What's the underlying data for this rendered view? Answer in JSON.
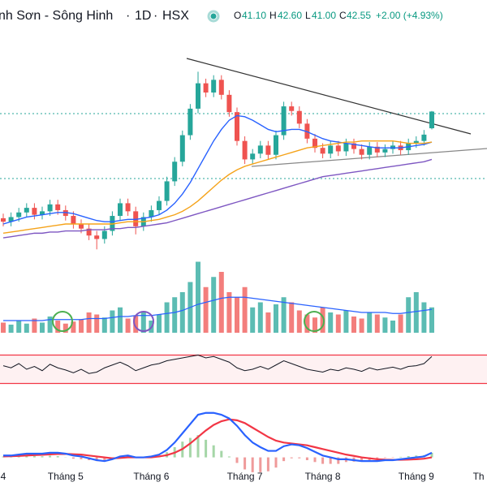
{
  "header": {
    "symbol": "nh Sơn - Sông Hinh",
    "interval": "1D",
    "exchange": "HSX",
    "ohlc": [
      {
        "label": "O",
        "value": "41.10"
      },
      {
        "label": "H",
        "value": "42.60"
      },
      {
        "label": "L",
        "value": "41.00"
      },
      {
        "label": "C",
        "value": "42.55"
      }
    ],
    "change": "+2.00 (+4.93%)"
  },
  "chart_data": {
    "type": "candlestick",
    "categories": [
      "4",
      null,
      null,
      null,
      null,
      null,
      null,
      null,
      "Tháng 5",
      null,
      null,
      null,
      null,
      null,
      null,
      null,
      null,
      null,
      null,
      "Tháng 6",
      null,
      null,
      null,
      null,
      null,
      null,
      null,
      null,
      null,
      null,
      null,
      "Tháng 7",
      null,
      null,
      null,
      null,
      null,
      null,
      null,
      null,
      null,
      "Tháng 8",
      null,
      null,
      null,
      null,
      null,
      null,
      null,
      null,
      null,
      null,
      null,
      "Tháng 9",
      null,
      null,
      null,
      null,
      null,
      null,
      null,
      "Th"
    ],
    "up_color": "#26a69a",
    "down_color": "#ef5350",
    "ylim": [
      29,
      48
    ],
    "open": [
      33.3,
      33.0,
      33.4,
      33.8,
      34.2,
      33.6,
      33.9,
      34.5,
      34.0,
      33.5,
      32.8,
      32.4,
      31.8,
      31.5,
      32.2,
      33.5,
      34.6,
      33.9,
      32.6,
      33.4,
      34.0,
      34.8,
      36.5,
      38.2,
      40.5,
      42.8,
      45.0,
      44.2,
      45.3,
      44.0,
      42.5,
      40.0,
      38.4,
      38.9,
      39.6,
      38.8,
      40.5,
      43.0,
      42.6,
      41.5,
      40.2,
      39.4,
      38.9,
      39.6,
      39.1,
      39.8,
      39.3,
      38.8,
      39.5,
      39.0,
      39.3,
      39.6,
      39.2,
      39.8,
      40.0,
      41.1,
      null,
      null,
      null,
      null,
      null,
      null
    ],
    "high": [
      33.7,
      33.8,
      34.2,
      34.6,
      34.6,
      34.3,
      34.9,
      34.9,
      34.4,
      33.9,
      33.2,
      32.8,
      32.2,
      32.6,
      33.9,
      35.0,
      35.0,
      34.3,
      33.8,
      34.4,
      35.2,
      36.9,
      38.6,
      40.9,
      43.2,
      46.0,
      45.4,
      45.7,
      45.7,
      44.4,
      42.9,
      40.4,
      39.3,
      40.0,
      40.0,
      40.9,
      43.4,
      43.4,
      43.0,
      41.9,
      40.6,
      39.8,
      40.0,
      40.0,
      40.2,
      40.2,
      39.7,
      39.9,
      39.9,
      39.7,
      40.0,
      40.0,
      40.2,
      40.4,
      40.95,
      42.6,
      null,
      null,
      null,
      null,
      null,
      null
    ],
    "low": [
      32.6,
      32.6,
      33.0,
      33.4,
      33.2,
      33.2,
      33.5,
      33.6,
      33.1,
      32.4,
      32.0,
      31.4,
      30.6,
      31.1,
      31.8,
      33.1,
      33.5,
      31.9,
      32.2,
      33.0,
      33.6,
      34.4,
      36.1,
      37.8,
      40.1,
      42.4,
      43.8,
      43.8,
      43.6,
      42.1,
      39.6,
      38.0,
      38.0,
      38.5,
      38.4,
      38.4,
      40.1,
      42.2,
      41.1,
      39.8,
      39.0,
      38.5,
      38.5,
      38.7,
      38.7,
      38.9,
      38.4,
      38.4,
      38.6,
      38.6,
      38.9,
      38.8,
      38.8,
      39.4,
      39.6,
      41.0,
      null,
      null,
      null,
      null,
      null,
      null
    ],
    "close": [
      33.0,
      33.4,
      33.8,
      34.2,
      33.6,
      33.9,
      34.5,
      34.0,
      33.5,
      32.8,
      32.4,
      31.8,
      31.5,
      32.2,
      33.5,
      34.6,
      33.9,
      32.6,
      33.4,
      34.0,
      34.8,
      36.5,
      38.2,
      40.5,
      42.8,
      45.0,
      44.2,
      45.3,
      44.0,
      42.5,
      40.0,
      38.4,
      38.9,
      39.6,
      38.8,
      40.5,
      43.0,
      42.6,
      41.5,
      40.2,
      39.4,
      38.9,
      39.6,
      39.1,
      39.8,
      39.3,
      38.8,
      39.5,
      39.0,
      39.3,
      39.6,
      39.2,
      39.8,
      40.0,
      40.55,
      42.55,
      null,
      null,
      null,
      null,
      null,
      null
    ],
    "moving_averages": [
      {
        "color": "#2962ff",
        "values": [
          32.8,
          33.0,
          33.2,
          33.4,
          33.5,
          33.6,
          33.7,
          33.8,
          33.8,
          33.7,
          33.5,
          33.3,
          33.1,
          33.0,
          33.0,
          33.1,
          33.2,
          33.2,
          33.3,
          33.4,
          33.6,
          34.0,
          34.6,
          35.4,
          36.4,
          37.6,
          38.8,
          40.0,
          41.0,
          41.8,
          42.2,
          42.1,
          41.8,
          41.4,
          41.0,
          40.8,
          40.9,
          41.0,
          41.0,
          40.8,
          40.5,
          40.2,
          40.0,
          39.9,
          39.8,
          39.7,
          39.6,
          39.5,
          39.4,
          39.4,
          39.4,
          39.4,
          39.5,
          39.6,
          39.7,
          39.9,
          null,
          null,
          null,
          null,
          null,
          null
        ]
      },
      {
        "color": "#f5a31a",
        "values": [
          32.0,
          32.1,
          32.2,
          32.3,
          32.4,
          32.5,
          32.6,
          32.7,
          32.8,
          32.8,
          32.8,
          32.8,
          32.8,
          32.8,
          32.8,
          32.9,
          33.0,
          33.0,
          33.0,
          33.1,
          33.2,
          33.4,
          33.6,
          33.9,
          34.3,
          34.8,
          35.4,
          36.0,
          36.6,
          37.1,
          37.5,
          37.8,
          38.0,
          38.2,
          38.4,
          38.6,
          38.8,
          39.0,
          39.2,
          39.4,
          39.5,
          39.6,
          39.7,
          39.8,
          39.9,
          39.9,
          40.0,
          40.0,
          40.0,
          40.0,
          40.0,
          39.9,
          39.8,
          39.8,
          39.8,
          39.9,
          null,
          null,
          null,
          null,
          null,
          null
        ]
      },
      {
        "color": "#7e57c2",
        "values": [
          31.6,
          31.7,
          31.8,
          31.9,
          32.0,
          32.0,
          32.1,
          32.1,
          32.2,
          32.2,
          32.2,
          32.3,
          32.3,
          32.3,
          32.4,
          32.4,
          32.5,
          32.5,
          32.6,
          32.7,
          32.8,
          32.9,
          33.1,
          33.3,
          33.5,
          33.7,
          33.9,
          34.1,
          34.3,
          34.5,
          34.7,
          34.9,
          35.1,
          35.3,
          35.5,
          35.7,
          35.9,
          36.1,
          36.3,
          36.5,
          36.7,
          36.9,
          37.0,
          37.1,
          37.2,
          37.3,
          37.4,
          37.5,
          37.6,
          37.7,
          37.8,
          37.9,
          38.0,
          38.1,
          38.2,
          38.4,
          null,
          null,
          null,
          null,
          null,
          null
        ]
      }
    ],
    "volume": [
      10,
      8,
      12,
      9,
      14,
      10,
      16,
      12,
      9,
      11,
      13,
      20,
      18,
      15,
      22,
      25,
      14,
      17,
      20,
      12,
      18,
      30,
      35,
      40,
      50,
      70,
      45,
      55,
      60,
      40,
      35,
      45,
      25,
      30,
      20,
      28,
      35,
      30,
      22,
      18,
      15,
      25,
      20,
      18,
      22,
      16,
      14,
      20,
      18,
      15,
      12,
      18,
      35,
      40,
      30,
      25,
      null,
      null,
      null,
      null,
      null,
      null
    ],
    "volume_ma": {
      "color": "#2962ff",
      "values": [
        12,
        12,
        12,
        12,
        12,
        12,
        13,
        13,
        13,
        13,
        13,
        14,
        14,
        14,
        15,
        16,
        16,
        17,
        17,
        17,
        18,
        19,
        20,
        22,
        25,
        28,
        30,
        32,
        34,
        35,
        35,
        35,
        34,
        33,
        32,
        31,
        30,
        29,
        28,
        27,
        26,
        25,
        24,
        23,
        22,
        21,
        20,
        20,
        20,
        20,
        19,
        19,
        20,
        21,
        22,
        23,
        null,
        null,
        null,
        null,
        null,
        null
      ]
    },
    "vlim": [
      0,
      80
    ],
    "rsi": {
      "color": "#131722",
      "values": [
        55,
        52,
        58,
        50,
        54,
        48,
        57,
        52,
        49,
        45,
        50,
        44,
        46,
        52,
        56,
        60,
        55,
        48,
        52,
        56,
        58,
        62,
        64,
        66,
        68,
        70,
        66,
        68,
        64,
        60,
        52,
        48,
        50,
        54,
        50,
        56,
        62,
        58,
        54,
        50,
        48,
        46,
        50,
        48,
        52,
        50,
        47,
        52,
        49,
        51,
        53,
        50,
        54,
        55,
        58,
        68,
        null,
        null,
        null,
        null,
        null,
        null
      ]
    },
    "rlim": [
      10,
      90
    ],
    "rticks": [
      30,
      70
    ],
    "macd": {
      "color": "#2962ff",
      "values": [
        0.1,
        0.1,
        0.15,
        0.2,
        0.2,
        0.2,
        0.25,
        0.25,
        0.2,
        0.1,
        0.05,
        -0.05,
        -0.15,
        -0.2,
        -0.1,
        0.05,
        0.1,
        0.0,
        0.0,
        0.05,
        0.15,
        0.4,
        0.8,
        1.3,
        1.8,
        2.3,
        2.4,
        2.4,
        2.3,
        2.1,
        1.7,
        1.2,
        0.8,
        0.55,
        0.35,
        0.35,
        0.6,
        0.7,
        0.65,
        0.5,
        0.3,
        0.1,
        0.0,
        -0.1,
        -0.1,
        -0.15,
        -0.2,
        -0.2,
        -0.2,
        -0.15,
        -0.15,
        -0.1,
        -0.05,
        0.0,
        0.05,
        0.25,
        null,
        null,
        null,
        null,
        null,
        null
      ]
    },
    "signal": {
      "color": "#f23645",
      "values": [
        0.05,
        0.06,
        0.08,
        0.1,
        0.12,
        0.14,
        0.16,
        0.18,
        0.19,
        0.17,
        0.15,
        0.1,
        0.05,
        0.0,
        -0.05,
        -0.03,
        0.0,
        0.0,
        0.0,
        0.0,
        0.05,
        0.12,
        0.25,
        0.45,
        0.75,
        1.1,
        1.45,
        1.75,
        1.95,
        2.05,
        2.0,
        1.85,
        1.6,
        1.35,
        1.1,
        0.9,
        0.8,
        0.75,
        0.7,
        0.65,
        0.55,
        0.45,
        0.35,
        0.25,
        0.15,
        0.08,
        0.0,
        -0.05,
        -0.1,
        -0.12,
        -0.13,
        -0.13,
        -0.12,
        -0.1,
        -0.07,
        0.0,
        null,
        null,
        null,
        null,
        null,
        null
      ]
    },
    "histogram": [
      0.05,
      0.04,
      0.07,
      0.1,
      0.08,
      0.06,
      0.09,
      0.07,
      0.01,
      -0.07,
      -0.1,
      -0.15,
      -0.2,
      -0.2,
      -0.05,
      0.08,
      0.1,
      0,
      0,
      0.05,
      0.1,
      0.28,
      0.55,
      0.85,
      1.05,
      1.2,
      0.95,
      0.65,
      0.35,
      0.05,
      -0.3,
      -0.65,
      -0.8,
      -0.8,
      -0.75,
      -0.55,
      -0.2,
      -0.05,
      -0.05,
      -0.15,
      -0.25,
      -0.35,
      -0.35,
      -0.35,
      -0.25,
      -0.23,
      -0.2,
      -0.15,
      -0.1,
      -0.03,
      -0.02,
      0.03,
      0.07,
      0.1,
      0.12,
      0.25,
      null,
      null,
      null,
      null,
      null,
      null
    ],
    "mlim": [
      -0.5,
      3.0
    ]
  }
}
